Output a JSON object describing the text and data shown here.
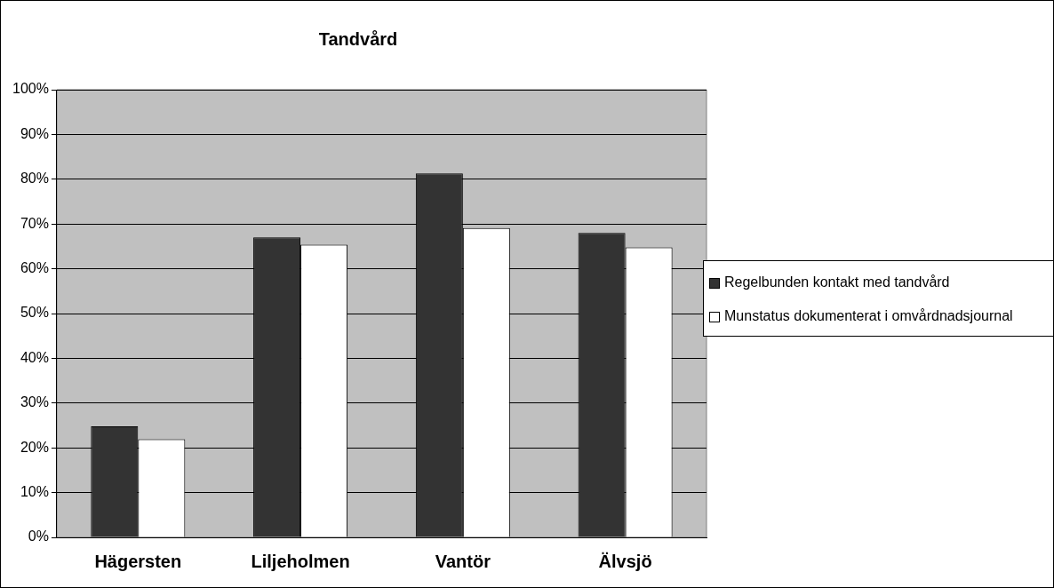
{
  "chart_data": {
    "type": "bar",
    "title": "Tandvård",
    "categories": [
      "Hägersten",
      "Liljeholmen",
      "Vantör",
      "Älvsjö"
    ],
    "series": [
      {
        "name": "Regelbunden kontakt med tandvård",
        "color": "#333333",
        "values": [
          24.8,
          67.0,
          81.3,
          68.0
        ]
      },
      {
        "name": "Munstatus dokumenterat i omvårdnadsjournal",
        "color": "#ffffff",
        "values": [
          21.9,
          65.4,
          69.1,
          64.8
        ]
      }
    ],
    "ylim": [
      0,
      100
    ],
    "yticks": [
      {
        "value": 0,
        "label": "0%"
      },
      {
        "value": 10,
        "label": "10%"
      },
      {
        "value": 20,
        "label": "20%"
      },
      {
        "value": 30,
        "label": "30%"
      },
      {
        "value": 40,
        "label": "40%"
      },
      {
        "value": 50,
        "label": "50%"
      },
      {
        "value": 60,
        "label": "60%"
      },
      {
        "value": 70,
        "label": "70%"
      },
      {
        "value": 80,
        "label": "80%"
      },
      {
        "value": 90,
        "label": "90%"
      },
      {
        "value": 100,
        "label": "100%"
      }
    ],
    "grid": "y",
    "legend": "right"
  }
}
